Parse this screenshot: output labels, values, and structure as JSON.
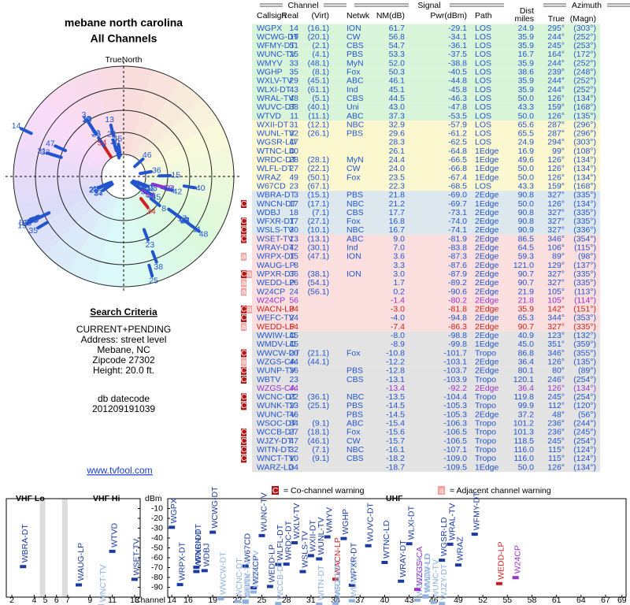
{
  "header": {
    "location": "mebane north carolina",
    "title": "All Channels"
  },
  "criteria": {
    "heading": "Search Criteria",
    "lines": [
      "CURRENT+PENDING",
      "Address: street level",
      "Mebane, NC",
      "Zipcode 27302",
      "Height: 20.0 ft."
    ],
    "datecode_label": "db datecode",
    "datecode": "201209191039"
  },
  "link": "www.tvfool.com",
  "polar": {
    "north_label": "TrueNorth",
    "n": "N"
  },
  "table": {
    "group_headers": [
      "Channel",
      "Signal",
      "Azimuth"
    ],
    "dist_header": "Dist",
    "columns": [
      "Callsign",
      "Real",
      "(Virt)",
      "Netwk",
      "NM(dB)",
      "Pwr(dBm)",
      "Path",
      "miles",
      "True",
      "(Magn)"
    ],
    "rows": [
      {
        "band": "#d9f5d9",
        "color": "#2255cc",
        "flags": null,
        "cells": [
          "WGPX",
          "14",
          "(16.1)",
          "ION",
          "61.7",
          "-29.1",
          "LOS",
          "24.9",
          "295°",
          "(303°)"
        ]
      },
      {
        "band": "#d9f5d9",
        "color": "#2255cc",
        "flags": null,
        "cells": [
          "WCWG-DT",
          "19",
          "(20.1)",
          "CW",
          "56.8",
          "-34.1",
          "LOS",
          "35.9",
          "244°",
          "(252°)"
        ]
      },
      {
        "band": "#d9f5d9",
        "color": "#2255cc",
        "flags": null,
        "cells": [
          "WFMY-DT",
          "51",
          "(2.1)",
          "CBS",
          "54.7",
          "-36.1",
          "LOS",
          "35.9",
          "245°",
          "(253°)"
        ]
      },
      {
        "band": "#d9f5d9",
        "color": "#2255cc",
        "flags": null,
        "cells": [
          "WUNC-TV",
          "25",
          "(4.1)",
          "PBS",
          "53.3",
          "-37.5",
          "LOS",
          "16.7",
          "164°",
          "(172°)"
        ]
      },
      {
        "band": "#d9f5d9",
        "color": "#2255cc",
        "flags": null,
        "cells": [
          "WMYV",
          "33",
          "(48.1)",
          "MyN",
          "52.0",
          "-38.8",
          "LOS",
          "35.9",
          "244°",
          "(252°)"
        ]
      },
      {
        "band": "#d9f5d9",
        "color": "#2255cc",
        "flags": null,
        "cells": [
          "WGHP",
          "35",
          "(8.1)",
          "Fox",
          "50.3",
          "-40.5",
          "LOS",
          "38.6",
          "239°",
          "(248°)"
        ]
      },
      {
        "band": "#d9f5d9",
        "color": "#2255cc",
        "flags": null,
        "cells": [
          "WXLV-TV",
          "29",
          "(45.1)",
          "ABC",
          "46.1",
          "-44.8",
          "LOS",
          "35.9",
          "244°",
          "(252°)"
        ]
      },
      {
        "band": "#d9f5d9",
        "color": "#2255cc",
        "flags": null,
        "cells": [
          "WLXI-DT",
          "43",
          "(61.1)",
          "Ind",
          "45.1",
          "-45.8",
          "LOS",
          "35.9",
          "244°",
          "(252°)"
        ]
      },
      {
        "band": "#d9f5d9",
        "color": "#2255cc",
        "flags": null,
        "cells": [
          "WRAL-TV",
          "48",
          "(5.1)",
          "CBS",
          "44.5",
          "-46.3",
          "LOS",
          "50.0",
          "126°",
          "(134°)"
        ]
      },
      {
        "band": "#d9f5d9",
        "color": "#2255cc",
        "flags": null,
        "cells": [
          "WUVC-DT",
          "38",
          "(40.1)",
          "Uni",
          "43.0",
          "-47.8",
          "LOS",
          "43.3",
          "159°",
          "(168°)"
        ]
      },
      {
        "band": "#d9f5d9",
        "color": "#2255cc",
        "flags": null,
        "cells": [
          "WTVD",
          "11",
          "(11.1)",
          "ABC",
          "37.3",
          "-53.5",
          "LOS",
          "50.0",
          "126°",
          "(135°)"
        ]
      },
      {
        "band": "#fbf8d0",
        "color": "#2255cc",
        "flags": null,
        "cells": [
          "WXII-DT",
          "31",
          "(12.1)",
          "NBC",
          "32.9",
          "-57.9",
          "LOS",
          "65.6",
          "287°",
          "(296°)"
        ]
      },
      {
        "band": "#fbf8d0",
        "color": "#2255cc",
        "flags": null,
        "cells": [
          "WUNL-TV",
          "32",
          "(26.1)",
          "PBS",
          "29.6",
          "-61.2",
          "LOS",
          "65.5",
          "287°",
          "(296°)"
        ]
      },
      {
        "band": "#fbf8d0",
        "color": "#2255cc",
        "flags": null,
        "cells": [
          "WGSR-LD",
          "47",
          null,
          null,
          "28.3",
          "-62.5",
          "LOS",
          "24.9",
          "294°",
          "(303°)"
        ]
      },
      {
        "band": "#fbf8d0",
        "color": "#2255cc",
        "flags": null,
        "cells": [
          "WTNC-LD",
          "40",
          null,
          null,
          "26.1",
          "-64.8",
          "1Edge",
          "16.9",
          "99°",
          "(108°)"
        ]
      },
      {
        "band": "#fbf8d0",
        "color": "#2255cc",
        "flags": null,
        "cells": [
          "WRDC-DT",
          "28",
          "(28.1)",
          "MyN",
          "24.4",
          "-66.5",
          "1Edge",
          "49.6",
          "126°",
          "(134°)"
        ]
      },
      {
        "band": "#fbf8d0",
        "color": "#2255cc",
        "flags": null,
        "cells": [
          "WLFL-DT",
          "27",
          "(22.1)",
          "CW",
          "24.0",
          "-66.8",
          "1Edge",
          "50.0",
          "126°",
          "(134°)"
        ]
      },
      {
        "band": "#fbf8d0",
        "color": "#2255cc",
        "flags": null,
        "cells": [
          "WRAZ",
          "49",
          "(50.1)",
          "Fox",
          "23.5",
          "-67.4",
          "1Edge",
          "50.0",
          "126°",
          "(134°)"
        ]
      },
      {
        "band": "#fbf8d0",
        "color": "#2255cc",
        "flags": null,
        "cells": [
          "W67CD",
          "23",
          "(67.1)",
          null,
          "22.3",
          "-68.5",
          "LOS",
          "43.3",
          "159°",
          "(168°)"
        ]
      },
      {
        "band": "#dde7ee",
        "color": "#2255cc",
        "flags": null,
        "cells": [
          "WBRA-DT",
          "3",
          "(15.1)",
          "PBS",
          "21.8",
          "-69.0",
          "2Edge",
          "90.8",
          "327°",
          "(335°)"
        ]
      },
      {
        "band": "#dde7ee",
        "color": "#2255cc",
        "flags": [
          "C"
        ],
        "cells": [
          "WNCN-DT",
          "17",
          "(17.1)",
          "NBC",
          "21.2",
          "-69.7",
          "1Edge",
          "50.0",
          "126°",
          "(134°)"
        ]
      },
      {
        "band": "#dde7ee",
        "color": "#2255cc",
        "flags": null,
        "cells": [
          "WDBJ",
          "18",
          "(7.1)",
          "CBS",
          "17.7",
          "-73.1",
          "2Edge",
          "90.8",
          "327°",
          "(335°)"
        ]
      },
      {
        "band": "#dde7ee",
        "color": "#2255cc",
        "flags": [
          "C"
        ],
        "cells": [
          "WFXR-DT",
          "17",
          "(27.1)",
          "Fox",
          "16.8",
          "-74.0",
          "2Edge",
          "90.8",
          "327°",
          "(335°)"
        ]
      },
      {
        "band": "#dde7ee",
        "color": "#2255cc",
        "flags": [
          "C"
        ],
        "cells": [
          "WSLS-TV",
          "30",
          "(10.1)",
          "NBC",
          "16.7",
          "-74.1",
          "2Edge",
          "90.9",
          "327°",
          "(336°)"
        ]
      },
      {
        "band": "#fbdede",
        "color": "#2255cc",
        "flags": [
          "C"
        ],
        "cells": [
          "WSET-TV",
          "13",
          "(13.1)",
          "ABC",
          "9.0",
          "-81.9",
          "2Edge",
          "86.5",
          "346°",
          "(354°)"
        ]
      },
      {
        "band": "#fbdede",
        "color": "#2255cc",
        "flags": null,
        "cells": [
          "WRAY-DT",
          "42",
          "(30.1)",
          "Ind",
          "7.0",
          "-83.8",
          "2Edge",
          "64.5",
          "106°",
          "(115°)"
        ]
      },
      {
        "band": "#fbdede",
        "color": "#2255cc",
        "flags": [
          "a"
        ],
        "cells": [
          "WRPX-DT",
          "15",
          "(47.1)",
          "ION",
          "3.6",
          "-87.3",
          "2Edge",
          "59.3",
          "89°",
          "(98°)"
        ]
      },
      {
        "band": "#fbdede",
        "color": "#2255cc",
        "flags": null,
        "cells": [
          "WAUG-LP",
          "8",
          null,
          null,
          "3.3",
          "-87.6",
          "2Edge",
          "121.0",
          "129°",
          "(137°)"
        ]
      },
      {
        "band": "#fbdede",
        "color": "#2255cc",
        "flags": [
          "C",
          "a"
        ],
        "cells": [
          "WPXR-DT",
          "36",
          "(38.1)",
          "ION",
          "3.0",
          "-87.9",
          "2Edge",
          "90.7",
          "327°",
          "(335°)"
        ]
      },
      {
        "band": "#fbdede",
        "color": "#2255cc",
        "flags": [
          "a"
        ],
        "cells": [
          "WEDD-LP",
          "26",
          "(54.1)",
          null,
          "1.7",
          "-89.2",
          "2Edge",
          "90.7",
          "327°",
          "(335°)"
        ]
      },
      {
        "band": "#fbdede",
        "color": "#2255cc",
        "flags": [
          "a"
        ],
        "cells": [
          "W24CP",
          "24",
          "(56.1)",
          null,
          "0.2",
          "-90.6",
          "2Edge",
          "21.9",
          "105°",
          "(113°)"
        ]
      },
      {
        "band": "#fbdede",
        "color": "#9933cc",
        "flags": null,
        "cells": [
          "W24CP",
          "56",
          null,
          null,
          "-1.4",
          "-80.2",
          "2Edge",
          "21.8",
          "105°",
          "(114°)"
        ]
      },
      {
        "band": "#fbdede",
        "color": "#cc2222",
        "flags": [
          "C",
          "a"
        ],
        "cells": [
          "WACN-LP",
          "34",
          null,
          null,
          "-3.0",
          "-81.8",
          "2Edge",
          "35.9",
          "142°",
          "(151°)"
        ]
      },
      {
        "band": "#fbdede",
        "color": "#2255cc",
        "flags": [
          "C"
        ],
        "cells": [
          "WEFC-TV",
          "24",
          null,
          null,
          "-4.0",
          "-94.8",
          "2Edge",
          "65.3",
          "344°",
          "(353°)"
        ]
      },
      {
        "band": "#fbdede",
        "color": "#cc2222",
        "flags": [
          "a"
        ],
        "cells": [
          "WEDD-LP",
          "54",
          null,
          null,
          "-7.4",
          "-86.3",
          "2Edge",
          "90.7",
          "327°",
          "(335°)"
        ]
      },
      {
        "band": "#e3e3e3",
        "color": "#2255cc",
        "flags": null,
        "cells": [
          "WWIW-LD",
          "45",
          null,
          null,
          "-8.0",
          "-98.8",
          "2Edge",
          "40.9",
          "123°",
          "(132°)"
        ]
      },
      {
        "band": "#e3e3e3",
        "color": "#2255cc",
        "flags": null,
        "cells": [
          "WMDV-LD",
          "45",
          null,
          null,
          "-8.9",
          "-99.8",
          "1Edge",
          "45.0",
          "351°",
          "(359°)"
        ]
      },
      {
        "band": "#e3e3e3",
        "color": "#2255cc",
        "flags": [
          "C"
        ],
        "cells": [
          "WWCW-DT",
          "20",
          "(21.1)",
          "Fox",
          "-10.8",
          "-101.7",
          "Tropo",
          "86.8",
          "346°",
          "(355°)"
        ]
      },
      {
        "band": "#e3e3e3",
        "color": "#2255cc",
        "flags": [
          "a"
        ],
        "cells": [
          "WZGS-CA",
          "44",
          "(44.1)",
          null,
          "-12.2",
          "-103.1",
          "2Edge",
          "36.4",
          "126°",
          "(135°)"
        ]
      },
      {
        "band": "#e3e3e3",
        "color": "#2255cc",
        "flags": [
          "C"
        ],
        "cells": [
          "WUNP-TV",
          "36",
          null,
          "PBS",
          "-12.8",
          "-103.7",
          "2Edge",
          "80.1",
          "80°",
          "(89°)"
        ]
      },
      {
        "band": "#e3e3e3",
        "color": "#2255cc",
        "flags": [
          "C"
        ],
        "cells": [
          "WBTV",
          "23",
          null,
          "CBS",
          "-13.1",
          "-103.9",
          "Tropo",
          "120.1",
          "246°",
          "(254°)"
        ]
      },
      {
        "band": "#e3e3e3",
        "color": "#9933cc",
        "flags": null,
        "cells": [
          "WZGS-CA",
          "44",
          null,
          null,
          "-13.4",
          "-92.2",
          "2Edge",
          "36.4",
          "126°",
          "(134°)"
        ]
      },
      {
        "band": "#e3e3e3",
        "color": "#2255cc",
        "flags": [
          "C"
        ],
        "cells": [
          "WCNC-DT",
          "22",
          "(36.1)",
          "NBC",
          "-13.5",
          "-104.4",
          "Tropo",
          "119.8",
          "245°",
          "(254°)"
        ]
      },
      {
        "band": "#e3e3e3",
        "color": "#2255cc",
        "flags": [
          "C"
        ],
        "cells": [
          "WUNK-TV",
          "23",
          "(25.1)",
          "PBS",
          "-14.5",
          "-105.3",
          "Tropo",
          "99.9",
          "112°",
          "(120°)"
        ]
      },
      {
        "band": "#e3e3e3",
        "color": "#2255cc",
        "flags": null,
        "cells": [
          "WUNC-TV",
          "46",
          null,
          "PBS",
          "-14.5",
          "-105.3",
          "2Edge",
          "37.2",
          "48°",
          "(56°)"
        ]
      },
      {
        "band": "#e3e3e3",
        "color": "#2255cc",
        "flags": null,
        "cells": [
          "WSOC-DT",
          "34",
          "(9.1)",
          "ABC",
          "-15.4",
          "-106.3",
          "Tropo",
          "101.2",
          "236°",
          "(244°)"
        ]
      },
      {
        "band": "#e3e3e3",
        "color": "#2255cc",
        "flags": [
          "C"
        ],
        "cells": [
          "WCCB-DT",
          "27",
          "(18.1)",
          "Fox",
          "-15.6",
          "-106.5",
          "Tropo",
          "101.3",
          "236°",
          "(245°)"
        ]
      },
      {
        "band": "#e3e3e3",
        "color": "#2255cc",
        "flags": [
          "C"
        ],
        "cells": [
          "WJZY-DT",
          "47",
          "(46.1)",
          "CW",
          "-15.7",
          "-106.5",
          "Tropo",
          "118.5",
          "245°",
          "(254°)"
        ]
      },
      {
        "band": "#e3e3e3",
        "color": "#2255cc",
        "flags": [
          "C"
        ],
        "cells": [
          "WITN-DT",
          "32",
          "(7.1)",
          "NBC",
          "-16.1",
          "-107.1",
          "Tropo",
          "116.0",
          "115°",
          "(124°)"
        ]
      },
      {
        "band": "#e3e3e3",
        "color": "#2255cc",
        "flags": [
          "C"
        ],
        "cells": [
          "WNCT-TV",
          "10",
          "(9.1)",
          "CBS",
          "-18.2",
          "-109.0",
          "Tropo",
          "116.0",
          "115°",
          "(124°)"
        ]
      },
      {
        "band": "#e3e3e3",
        "color": "#2255cc",
        "flags": null,
        "cells": [
          "WARZ-LD",
          "34",
          null,
          null,
          "-18.7",
          "-109.5",
          "1Edge",
          "50.0",
          "126°",
          "(134°)"
        ]
      }
    ]
  },
  "spectrum": {
    "vhf_lo": "VHF Lo",
    "vhf_hi": "VHF Hi",
    "uhf": "UHF",
    "y_label": "dBm",
    "x_label": "Channel",
    "ylim": [
      -100,
      0
    ],
    "yticks": [
      -10,
      -20,
      -30,
      -40,
      -50,
      -60,
      -70,
      -80,
      -90
    ],
    "vhf_xlim": [
      1.5,
      13.5
    ],
    "vhf_ticks": [
      2,
      4,
      5,
      6,
      7,
      9,
      11,
      13
    ],
    "uhf_xlim": [
      13.5,
      69.5
    ],
    "uhf_ticks": [
      14,
      16,
      19,
      22,
      25,
      28,
      31,
      34,
      37,
      40,
      43,
      46,
      49,
      52,
      55,
      58,
      61,
      64,
      67,
      69
    ],
    "co_flag": "C",
    "co_text": "= Co-channel warning",
    "adj_flag": "a",
    "adj_text": "= Adjacent channel warning"
  }
}
